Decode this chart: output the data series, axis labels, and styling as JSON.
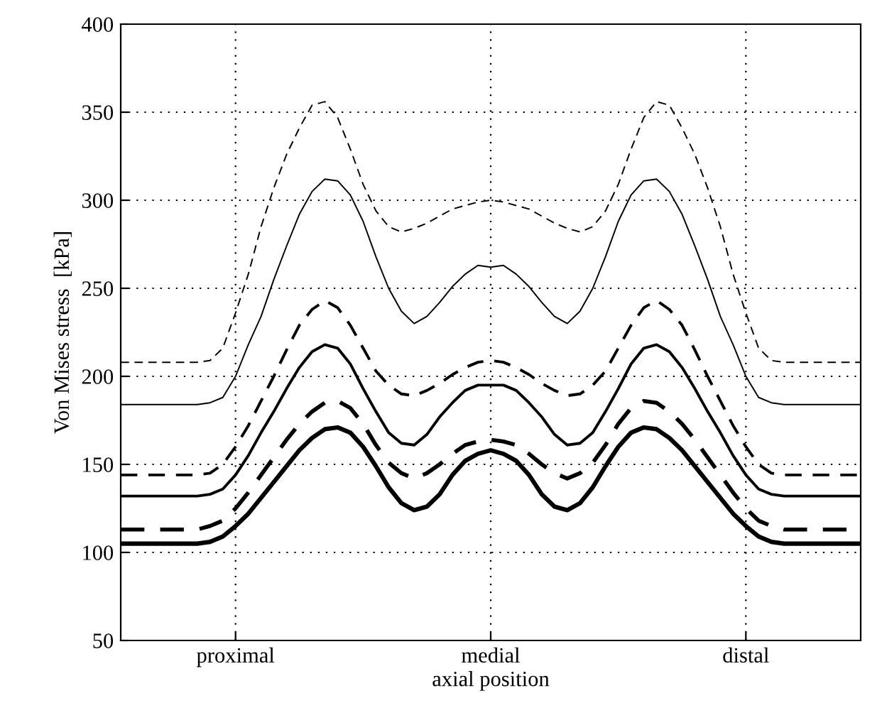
{
  "chart_data": {
    "type": "line",
    "xlabel": "axial position",
    "ylabel": "Von Mises stress  [kPa]",
    "categories": [
      null,
      null,
      null,
      null,
      null,
      null,
      null,
      null,
      null,
      "proximal",
      null,
      null,
      null,
      null,
      null,
      null,
      null,
      null,
      null,
      null,
      null,
      null,
      null,
      null,
      null,
      null,
      null,
      null,
      null,
      "medial",
      null,
      null,
      null,
      null,
      null,
      null,
      null,
      null,
      null,
      null,
      null,
      null,
      null,
      null,
      null,
      null,
      null,
      null,
      null,
      "distal",
      null,
      null,
      null,
      null,
      null,
      null,
      null,
      null,
      null
    ],
    "series": [
      {
        "color": "#000000",
        "line_style": "solid",
        "values": [
          105,
          105,
          105,
          105,
          105,
          105,
          105,
          106,
          109,
          115,
          122,
          131,
          140,
          149,
          158,
          165,
          170,
          171,
          168,
          160,
          149,
          137,
          128,
          124,
          126,
          133,
          144,
          152,
          156,
          158,
          156,
          152,
          144,
          133,
          126,
          124,
          128,
          137,
          149,
          160,
          168,
          171,
          170,
          165,
          158,
          149,
          140,
          131,
          122,
          115,
          109,
          106,
          105,
          105,
          105,
          105,
          105,
          105,
          105
        ]
      },
      {
        "color": "#000000",
        "line_style": "dashed",
        "values": [
          113,
          113,
          113,
          113,
          113,
          113,
          113,
          115,
          118,
          125,
          134,
          144,
          154,
          164,
          173,
          180,
          185,
          186,
          182,
          173,
          161,
          151,
          145,
          142,
          145,
          150,
          156,
          161,
          163,
          164,
          163,
          161,
          156,
          150,
          145,
          142,
          145,
          151,
          161,
          173,
          182,
          186,
          185,
          180,
          173,
          164,
          154,
          144,
          134,
          125,
          118,
          115,
          113,
          113,
          113,
          113,
          113,
          113,
          113
        ]
      },
      {
        "color": "#000000",
        "line_style": "solid",
        "values": [
          132,
          132,
          132,
          132,
          132,
          132,
          132,
          133,
          136,
          144,
          155,
          168,
          180,
          193,
          205,
          214,
          218,
          216,
          207,
          193,
          180,
          168,
          162,
          161,
          167,
          177,
          185,
          192,
          195,
          195,
          195,
          192,
          185,
          177,
          167,
          161,
          162,
          168,
          180,
          193,
          207,
          216,
          218,
          214,
          205,
          193,
          180,
          168,
          155,
          144,
          136,
          133,
          132,
          132,
          132,
          132,
          132,
          132,
          132
        ]
      },
      {
        "color": "#000000",
        "line_style": "dashed",
        "values": [
          144,
          144,
          144,
          144,
          144,
          144,
          144,
          145,
          150,
          160,
          172,
          186,
          200,
          215,
          229,
          238,
          243,
          239,
          229,
          216,
          203,
          195,
          190,
          189,
          192,
          196,
          201,
          205,
          208,
          209,
          208,
          205,
          201,
          196,
          192,
          189,
          190,
          195,
          203,
          216,
          229,
          239,
          243,
          238,
          229,
          215,
          200,
          186,
          172,
          160,
          150,
          145,
          144,
          144,
          144,
          144,
          144,
          144,
          144
        ]
      },
      {
        "color": "#000000",
        "line_style": "solid",
        "values": [
          184,
          184,
          184,
          184,
          184,
          184,
          184,
          185,
          188,
          200,
          218,
          234,
          255,
          274,
          292,
          305,
          312,
          311,
          303,
          288,
          268,
          250,
          237,
          230,
          234,
          242,
          251,
          258,
          263,
          262,
          263,
          258,
          251,
          242,
          234,
          230,
          237,
          250,
          268,
          288,
          303,
          311,
          312,
          305,
          292,
          274,
          255,
          234,
          218,
          200,
          188,
          185,
          184,
          184,
          184,
          184,
          184,
          184,
          184
        ]
      },
      {
        "color": "#000000",
        "line_style": "dashed",
        "values": [
          208,
          208,
          208,
          208,
          208,
          208,
          208,
          209,
          216,
          236,
          258,
          285,
          307,
          326,
          341,
          354,
          356,
          347,
          329,
          309,
          294,
          285,
          282,
          284,
          287,
          291,
          295,
          297,
          299,
          300,
          299,
          297,
          295,
          291,
          287,
          284,
          282,
          285,
          294,
          309,
          329,
          347,
          356,
          354,
          341,
          326,
          307,
          285,
          258,
          236,
          216,
          209,
          208,
          208,
          208,
          208,
          208,
          208,
          208
        ]
      }
    ],
    "ylim": [
      50,
      400
    ],
    "yticks": [
      50,
      100,
      150,
      200,
      250,
      300,
      350,
      400
    ],
    "grid": true,
    "legend": false,
    "marker": "none"
  }
}
